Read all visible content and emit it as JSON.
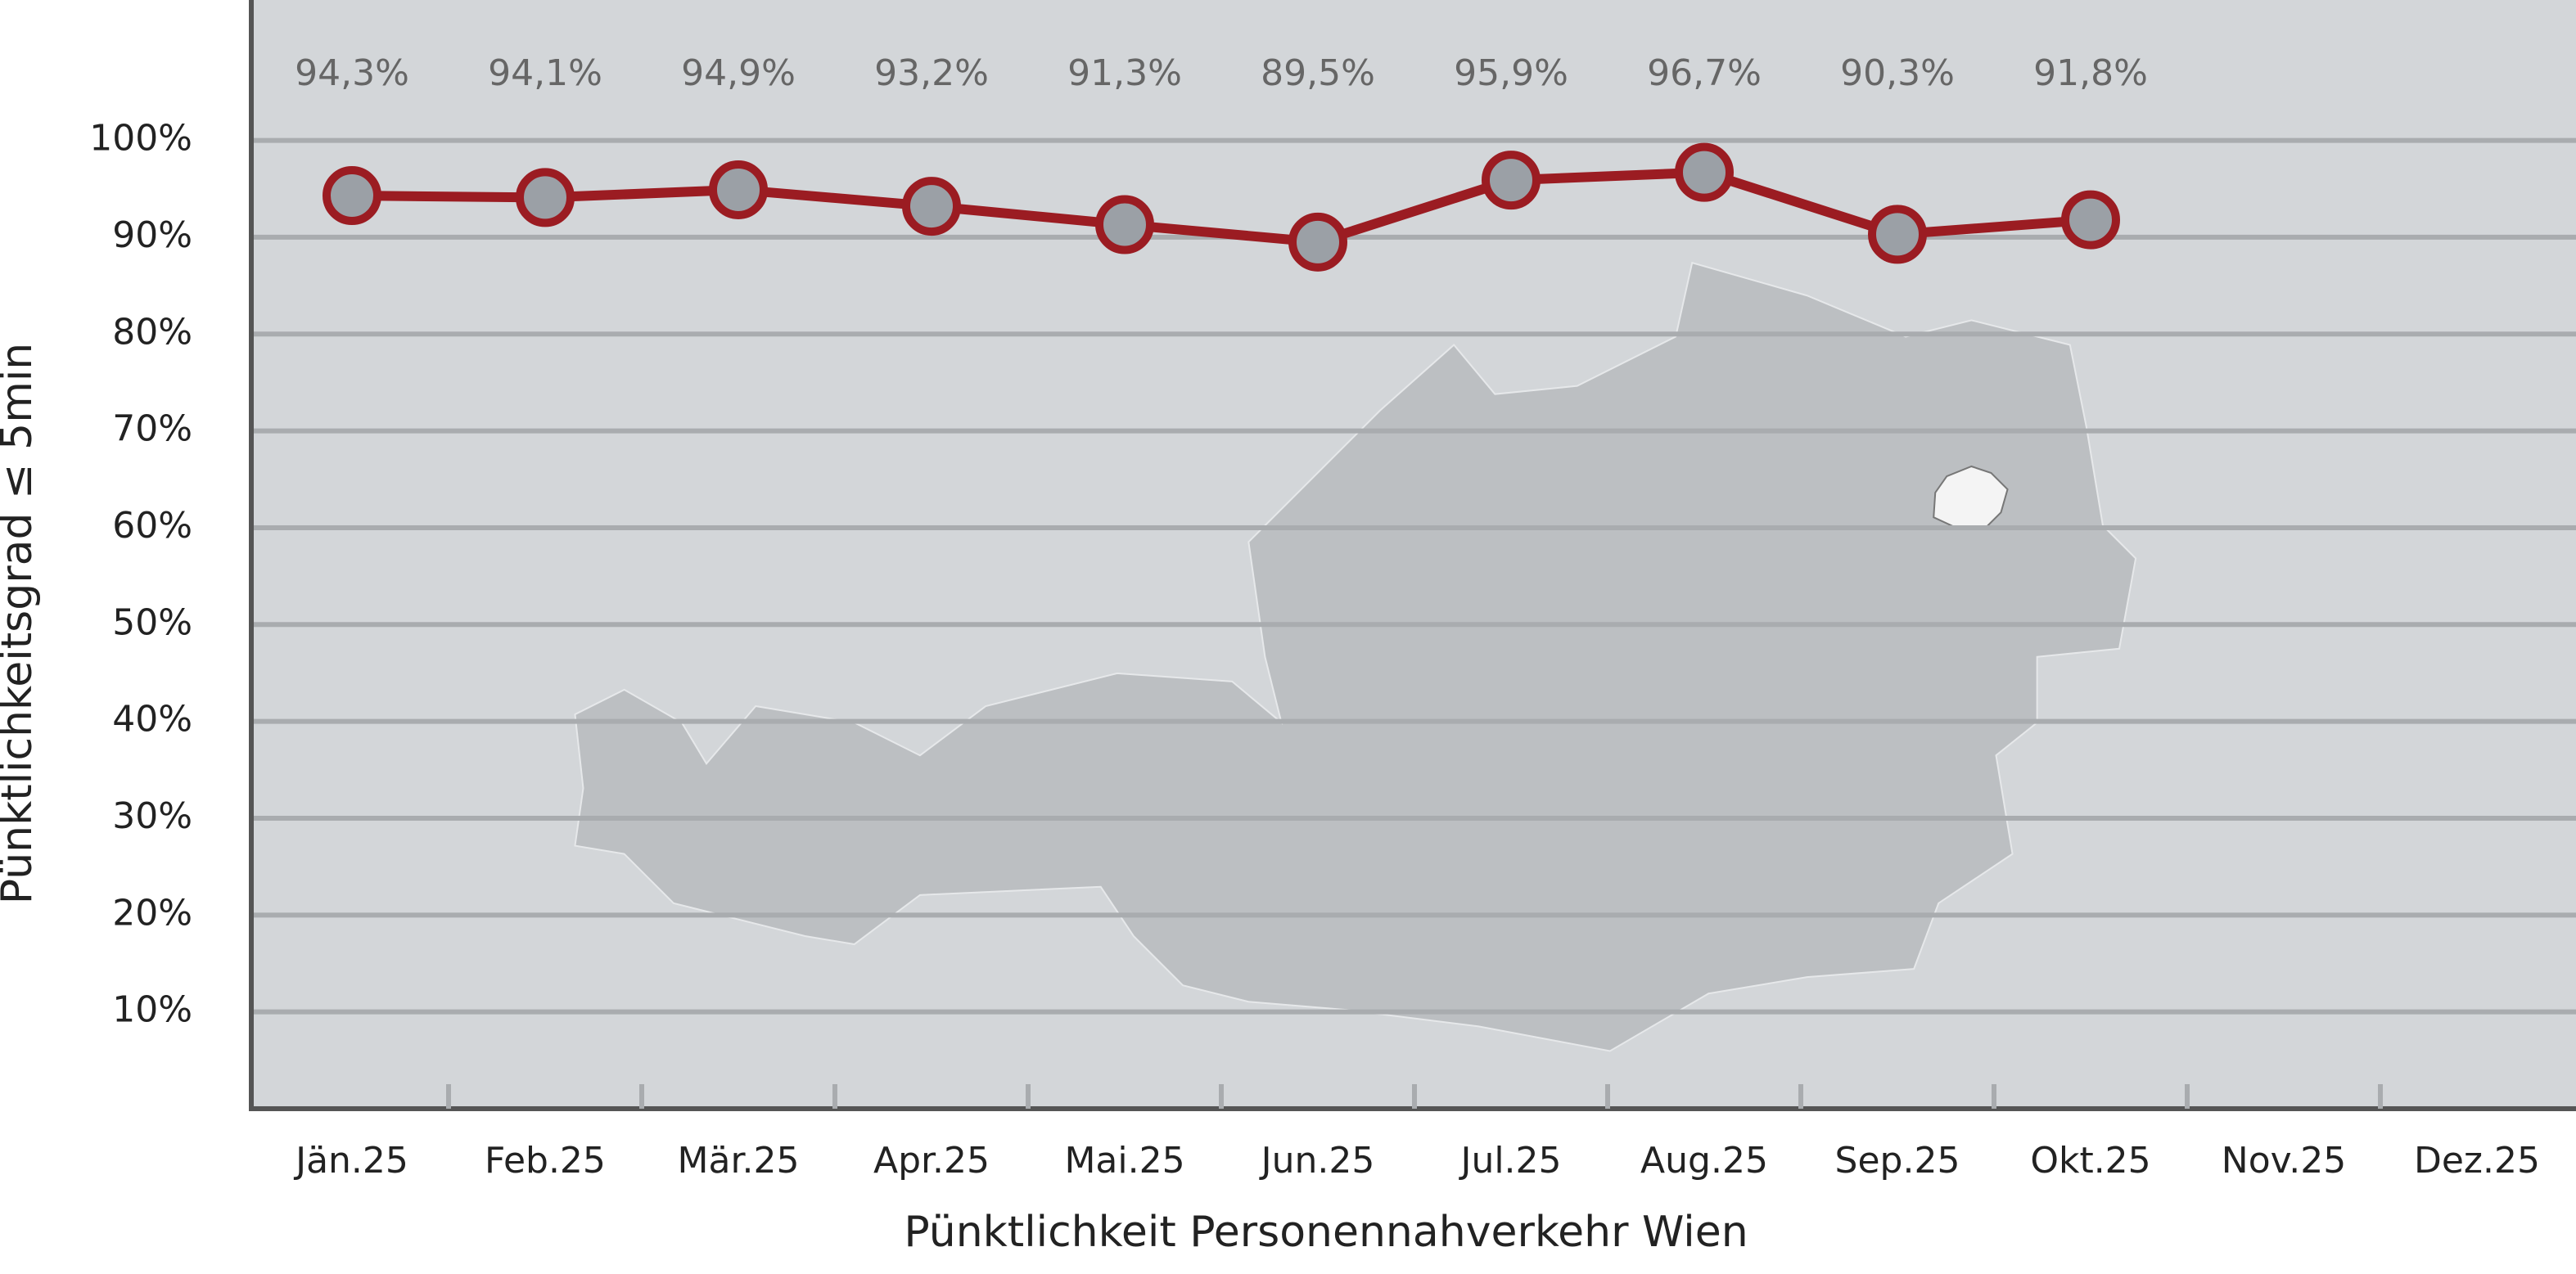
{
  "chart_data": {
    "type": "line",
    "x_label": "Pünktlichkeit Personennahverkehr Wien",
    "y_label": "Pünktlichkeitsgrad ≤ 5min",
    "categories": [
      "Jän.25",
      "Feb.25",
      "Mär.25",
      "Apr.25",
      "Mai.25",
      "Jun.25",
      "Jul.25",
      "Aug.25",
      "Sep.25",
      "Okt.25",
      "Nov.25",
      "Dez.25"
    ],
    "values": [
      94.3,
      94.1,
      94.9,
      93.2,
      91.3,
      89.5,
      95.9,
      96.7,
      90.3,
      91.8,
      null,
      null
    ],
    "value_labels": [
      "94,3%",
      "94,1%",
      "94,9%",
      "93,2%",
      "91,3%",
      "89,5%",
      "95,9%",
      "96,7%",
      "90,3%",
      "91,8%",
      null,
      null
    ],
    "color": "#9b1c22",
    "marker_color": "#9ba0a6",
    "ylim": [
      0,
      114.5
    ],
    "yticks": [
      {
        "value": 10,
        "label": "10%"
      },
      {
        "value": 20,
        "label": "20%"
      },
      {
        "value": 30,
        "label": "30%"
      },
      {
        "value": 40,
        "label": "40%"
      },
      {
        "value": 50,
        "label": "50%"
      },
      {
        "value": 60,
        "label": "60%"
      },
      {
        "value": 70,
        "label": "70%"
      },
      {
        "value": 80,
        "label": "80%"
      },
      {
        "value": 90,
        "label": "90%"
      },
      {
        "value": 100,
        "label": "100%"
      }
    ],
    "grid": true
  }
}
